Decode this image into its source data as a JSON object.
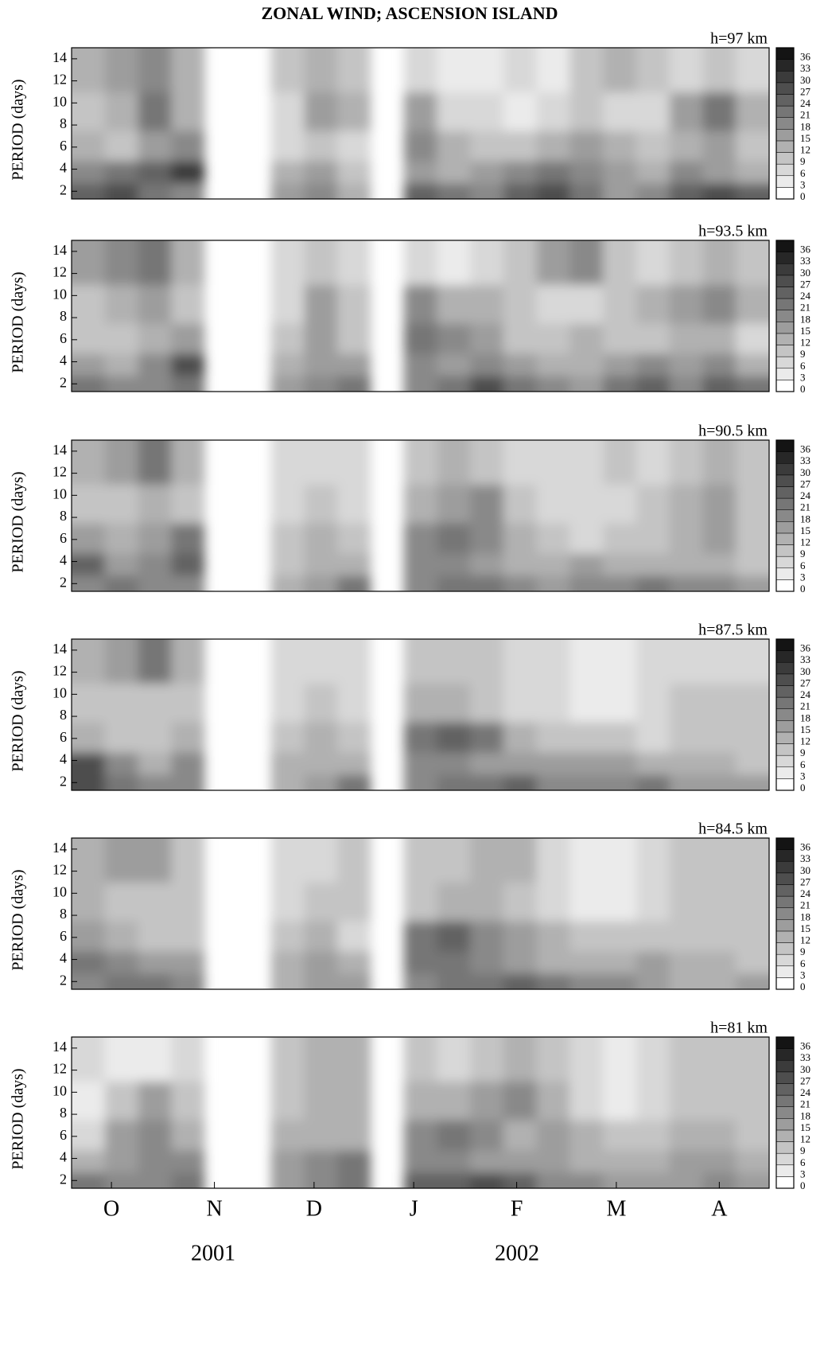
{
  "title": "ZONAL WIND; ASCENSION ISLAND",
  "years": [
    "2001",
    "2002"
  ],
  "chart_data": [
    {
      "type": "heatmap",
      "title": "h=97 km",
      "y_label": "PERIOD (days)",
      "x": [
        5,
        15,
        25,
        35,
        45,
        55,
        65,
        75,
        85,
        95,
        105,
        115,
        125,
        135,
        145,
        155,
        165,
        175,
        185,
        195,
        205
      ],
      "xlim": [
        0,
        210
      ],
      "periods": [
        2,
        3.5,
        6,
        9,
        13
      ],
      "ylim": [
        1.3,
        15
      ],
      "yticks": [
        2,
        4,
        6,
        8,
        10,
        12,
        14
      ],
      "colorbar_ticks": [
        0,
        3,
        6,
        9,
        12,
        15,
        18,
        21,
        24,
        27,
        30,
        33,
        36
      ],
      "values": [
        [
          24,
          27,
          21,
          18,
          null,
          null,
          15,
          18,
          12,
          null,
          24,
          21,
          18,
          24,
          27,
          21,
          15,
          18,
          24,
          27,
          24
        ],
        [
          18,
          21,
          24,
          30,
          null,
          null,
          12,
          15,
          9,
          null,
          15,
          12,
          15,
          18,
          21,
          18,
          15,
          12,
          18,
          15,
          12
        ],
        [
          12,
          9,
          15,
          18,
          null,
          null,
          6,
          9,
          6,
          null,
          18,
          12,
          9,
          9,
          12,
          15,
          12,
          9,
          12,
          15,
          9
        ],
        [
          9,
          12,
          21,
          12,
          null,
          null,
          6,
          15,
          12,
          null,
          15,
          6,
          6,
          3,
          6,
          9,
          6,
          6,
          15,
          21,
          12
        ],
        [
          12,
          15,
          18,
          12,
          null,
          null,
          9,
          12,
          9,
          null,
          6,
          3,
          3,
          6,
          3,
          9,
          12,
          9,
          6,
          9,
          6
        ]
      ]
    },
    {
      "type": "heatmap",
      "title": "h=93.5 km",
      "y_label": "PERIOD (days)",
      "x": [
        5,
        15,
        25,
        35,
        45,
        55,
        65,
        75,
        85,
        95,
        105,
        115,
        125,
        135,
        145,
        155,
        165,
        175,
        185,
        195,
        205
      ],
      "xlim": [
        0,
        210
      ],
      "periods": [
        2,
        3.5,
        6,
        9,
        13
      ],
      "ylim": [
        1.3,
        15
      ],
      "yticks": [
        2,
        4,
        6,
        8,
        10,
        12,
        14
      ],
      "colorbar_ticks": [
        0,
        3,
        6,
        9,
        12,
        15,
        18,
        21,
        24,
        27,
        30,
        33,
        36
      ],
      "values": [
        [
          21,
          18,
          18,
          21,
          null,
          null,
          15,
          18,
          21,
          null,
          18,
          21,
          27,
          21,
          18,
          15,
          21,
          24,
          18,
          24,
          21
        ],
        [
          15,
          12,
          18,
          27,
          null,
          null,
          12,
          15,
          15,
          null,
          18,
          15,
          18,
          15,
          12,
          12,
          15,
          18,
          15,
          18,
          12
        ],
        [
          9,
          9,
          12,
          15,
          null,
          null,
          9,
          15,
          9,
          null,
          21,
          18,
          15,
          9,
          9,
          12,
          9,
          9,
          12,
          12,
          6
        ],
        [
          9,
          12,
          15,
          9,
          null,
          null,
          6,
          15,
          9,
          null,
          18,
          12,
          12,
          9,
          6,
          6,
          9,
          12,
          15,
          18,
          12
        ],
        [
          15,
          18,
          21,
          12,
          null,
          null,
          6,
          9,
          6,
          null,
          6,
          3,
          6,
          9,
          15,
          18,
          9,
          6,
          9,
          12,
          9
        ]
      ]
    },
    {
      "type": "heatmap",
      "title": "h=90.5 km",
      "y_label": "PERIOD (days)",
      "x": [
        5,
        15,
        25,
        35,
        45,
        55,
        65,
        75,
        85,
        95,
        105,
        115,
        125,
        135,
        145,
        155,
        165,
        175,
        185,
        195,
        205
      ],
      "xlim": [
        0,
        210
      ],
      "periods": [
        2,
        3.5,
        6,
        9,
        13
      ],
      "ylim": [
        1.3,
        15
      ],
      "yticks": [
        2,
        4,
        6,
        8,
        10,
        12,
        14
      ],
      "colorbar_ticks": [
        0,
        3,
        6,
        9,
        12,
        15,
        18,
        21,
        24,
        27,
        30,
        33,
        36
      ],
      "values": [
        [
          18,
          21,
          18,
          18,
          null,
          null,
          12,
          15,
          21,
          null,
          18,
          21,
          21,
          18,
          15,
          18,
          18,
          21,
          18,
          18,
          15
        ],
        [
          24,
          15,
          18,
          24,
          null,
          null,
          9,
          12,
          12,
          null,
          18,
          18,
          15,
          12,
          12,
          15,
          12,
          12,
          12,
          12,
          9
        ],
        [
          15,
          12,
          15,
          21,
          null,
          null,
          9,
          12,
          9,
          null,
          18,
          21,
          18,
          12,
          9,
          6,
          9,
          9,
          12,
          15,
          9
        ],
        [
          9,
          9,
          12,
          9,
          null,
          null,
          6,
          9,
          6,
          null,
          12,
          15,
          18,
          9,
          6,
          6,
          6,
          9,
          12,
          15,
          9
        ],
        [
          12,
          15,
          21,
          12,
          null,
          null,
          6,
          6,
          6,
          null,
          9,
          12,
          9,
          6,
          6,
          6,
          9,
          6,
          9,
          12,
          9
        ]
      ]
    },
    {
      "type": "heatmap",
      "title": "h=87.5 km",
      "y_label": "PERIOD (days)",
      "x": [
        5,
        15,
        25,
        35,
        45,
        55,
        65,
        75,
        85,
        95,
        105,
        115,
        125,
        135,
        145,
        155,
        165,
        175,
        185,
        195,
        205
      ],
      "xlim": [
        0,
        210
      ],
      "periods": [
        2,
        3.5,
        6,
        9,
        13
      ],
      "ylim": [
        1.3,
        15
      ],
      "yticks": [
        2,
        4,
        6,
        8,
        10,
        12,
        14
      ],
      "colorbar_ticks": [
        0,
        3,
        6,
        9,
        12,
        15,
        18,
        21,
        24,
        27,
        30,
        33,
        36
      ],
      "values": [
        [
          27,
          21,
          18,
          18,
          null,
          null,
          12,
          15,
          21,
          null,
          18,
          21,
          21,
          24,
          18,
          18,
          18,
          21,
          15,
          15,
          15
        ],
        [
          27,
          18,
          12,
          18,
          null,
          null,
          12,
          12,
          12,
          null,
          18,
          18,
          15,
          15,
          15,
          15,
          15,
          12,
          12,
          12,
          9
        ],
        [
          12,
          9,
          9,
          12,
          null,
          null,
          9,
          12,
          9,
          null,
          21,
          24,
          21,
          12,
          9,
          9,
          9,
          6,
          9,
          9,
          9
        ],
        [
          9,
          9,
          9,
          9,
          null,
          null,
          6,
          9,
          6,
          null,
          12,
          12,
          9,
          6,
          6,
          3,
          3,
          6,
          9,
          9,
          9
        ],
        [
          12,
          15,
          21,
          12,
          null,
          null,
          6,
          6,
          6,
          null,
          9,
          9,
          9,
          6,
          6,
          3,
          3,
          6,
          6,
          6,
          6
        ]
      ]
    },
    {
      "type": "heatmap",
      "title": "h=84.5 km",
      "y_label": "PERIOD (days)",
      "x": [
        5,
        15,
        25,
        35,
        45,
        55,
        65,
        75,
        85,
        95,
        105,
        115,
        125,
        135,
        145,
        155,
        165,
        175,
        185,
        195,
        205
      ],
      "xlim": [
        0,
        210
      ],
      "periods": [
        2,
        3.5,
        6,
        9,
        13
      ],
      "ylim": [
        1.3,
        15
      ],
      "yticks": [
        2,
        4,
        6,
        8,
        10,
        12,
        14
      ],
      "colorbar_ticks": [
        0,
        3,
        6,
        9,
        12,
        15,
        18,
        21,
        24,
        27,
        30,
        33,
        36
      ],
      "values": [
        [
          18,
          21,
          21,
          18,
          null,
          null,
          12,
          15,
          15,
          null,
          18,
          21,
          21,
          24,
          21,
          18,
          18,
          15,
          12,
          12,
          15
        ],
        [
          21,
          18,
          15,
          15,
          null,
          null,
          12,
          15,
          12,
          null,
          21,
          21,
          18,
          15,
          12,
          12,
          12,
          15,
          12,
          12,
          9
        ],
        [
          15,
          12,
          9,
          9,
          null,
          null,
          9,
          12,
          6,
          null,
          21,
          24,
          18,
          15,
          12,
          9,
          9,
          9,
          9,
          9,
          9
        ],
        [
          12,
          9,
          9,
          9,
          null,
          null,
          6,
          9,
          9,
          null,
          9,
          12,
          12,
          9,
          6,
          3,
          3,
          6,
          9,
          9,
          9
        ],
        [
          12,
          15,
          15,
          9,
          null,
          null,
          6,
          6,
          9,
          null,
          9,
          9,
          12,
          12,
          6,
          3,
          3,
          6,
          9,
          9,
          9
        ]
      ]
    },
    {
      "type": "heatmap",
      "title": "h=81 km",
      "y_label": "PERIOD (days)",
      "x": [
        5,
        15,
        25,
        35,
        45,
        55,
        65,
        75,
        85,
        95,
        105,
        115,
        125,
        135,
        145,
        155,
        165,
        175,
        185,
        195,
        205
      ],
      "xlim": [
        0,
        210
      ],
      "periods": [
        2,
        3.5,
        6,
        9,
        13
      ],
      "ylim": [
        1.3,
        15
      ],
      "yticks": [
        2,
        4,
        6,
        8,
        10,
        12,
        14
      ],
      "colorbar_ticks": [
        0,
        3,
        6,
        9,
        12,
        15,
        18,
        21,
        24,
        27,
        30,
        33,
        36
      ],
      "xticks": [
        {
          "value": 12,
          "label": "O"
        },
        {
          "value": 43,
          "label": "N"
        },
        {
          "value": 73,
          "label": "D"
        },
        {
          "value": 103,
          "label": "J"
        },
        {
          "value": 134,
          "label": "F"
        },
        {
          "value": 164,
          "label": "M"
        },
        {
          "value": 195,
          "label": "A"
        }
      ],
      "values": [
        [
          21,
          18,
          18,
          21,
          null,
          null,
          15,
          18,
          21,
          null,
          24,
          24,
          27,
          24,
          18,
          18,
          15,
          15,
          15,
          18,
          15
        ],
        [
          12,
          15,
          18,
          18,
          null,
          null,
          15,
          18,
          21,
          null,
          18,
          18,
          15,
          15,
          15,
          12,
          12,
          12,
          15,
          15,
          12
        ],
        [
          6,
          15,
          18,
          12,
          null,
          null,
          12,
          12,
          12,
          null,
          18,
          21,
          18,
          12,
          15,
          12,
          9,
          9,
          12,
          12,
          9
        ],
        [
          3,
          9,
          15,
          9,
          null,
          null,
          9,
          12,
          12,
          null,
          12,
          12,
          15,
          18,
          12,
          6,
          3,
          6,
          9,
          9,
          9
        ],
        [
          6,
          3,
          3,
          6,
          null,
          null,
          9,
          12,
          12,
          null,
          9,
          6,
          9,
          12,
          9,
          6,
          3,
          6,
          9,
          9,
          9
        ]
      ]
    }
  ]
}
